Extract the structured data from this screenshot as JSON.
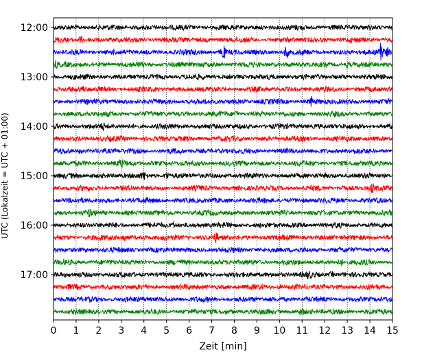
{
  "chart_data": {
    "type": "line",
    "chart_kind": "seismogram-helicorder",
    "title": "",
    "xlabel": "Zeit  [min]",
    "ylabel": "UTC (Lokalzeit = UTC + 01:00)",
    "xlim": [
      0,
      15
    ],
    "x_ticks": [
      0,
      1,
      2,
      3,
      4,
      5,
      6,
      7,
      8,
      9,
      10,
      11,
      12,
      13,
      14,
      15
    ],
    "x_tick_labels": [
      "0",
      "1",
      "2",
      "3",
      "4",
      "5",
      "6",
      "7",
      "8",
      "9",
      "10",
      "11",
      "12",
      "13",
      "14",
      "15"
    ],
    "vertical_grid": true,
    "grid_style": "dotted",
    "trace_interval_min": 15,
    "start_time": "12:00",
    "y_tick_labels": [
      "12:00",
      "13:00",
      "14:00",
      "15:00",
      "16:00",
      "17:00"
    ],
    "series_colors": [
      "#000000",
      "#ff0000",
      "#0000ff",
      "#008000"
    ],
    "traces": [
      {
        "start": "12:00",
        "color": "#000000",
        "events": []
      },
      {
        "start": "12:15",
        "color": "#ff0000",
        "events": [
          {
            "t": 1.2,
            "amp": 0.6
          }
        ]
      },
      {
        "start": "12:30",
        "color": "#0000ff",
        "events": [
          {
            "t": 7.5,
            "amp": 1.6
          },
          {
            "t": 10.3,
            "amp": 1.3
          },
          {
            "t": 14.5,
            "amp": 3.2
          },
          {
            "t": 14.8,
            "amp": 1.0
          }
        ]
      },
      {
        "start": "12:45",
        "color": "#008000",
        "events": [
          {
            "t": 0.1,
            "amp": 0.5
          },
          {
            "t": 13.0,
            "amp": 0.5
          }
        ]
      },
      {
        "start": "13:00",
        "color": "#000000",
        "events": []
      },
      {
        "start": "13:15",
        "color": "#ff0000",
        "events": [
          {
            "t": 1.3,
            "amp": 0.4
          }
        ]
      },
      {
        "start": "13:30",
        "color": "#0000ff",
        "events": [
          {
            "t": 11.4,
            "amp": 0.8
          }
        ]
      },
      {
        "start": "13:45",
        "color": "#008000",
        "events": [
          {
            "t": 1.5,
            "amp": 0.5
          },
          {
            "t": 8.1,
            "amp": 0.6
          }
        ]
      },
      {
        "start": "14:00",
        "color": "#000000",
        "events": [
          {
            "t": 2.2,
            "amp": 0.5
          }
        ]
      },
      {
        "start": "14:15",
        "color": "#ff0000",
        "events": []
      },
      {
        "start": "14:30",
        "color": "#0000ff",
        "events": [
          {
            "t": 1.2,
            "amp": 0.4
          }
        ]
      },
      {
        "start": "14:45",
        "color": "#008000",
        "events": [
          {
            "t": 3.0,
            "amp": 0.6
          }
        ]
      },
      {
        "start": "15:00",
        "color": "#000000",
        "events": [
          {
            "t": 4.0,
            "amp": 0.6
          },
          {
            "t": 5.0,
            "amp": 0.8
          }
        ]
      },
      {
        "start": "15:15",
        "color": "#ff0000",
        "events": [
          {
            "t": 12.8,
            "amp": 0.5
          },
          {
            "t": 14.1,
            "amp": 0.9
          }
        ]
      },
      {
        "start": "15:30",
        "color": "#0000ff",
        "events": []
      },
      {
        "start": "15:45",
        "color": "#008000",
        "events": [
          {
            "t": 1.6,
            "amp": 0.5
          }
        ]
      },
      {
        "start": "16:00",
        "color": "#000000",
        "events": [
          {
            "t": 5.3,
            "amp": 0.5
          }
        ]
      },
      {
        "start": "16:15",
        "color": "#ff0000",
        "events": [
          {
            "t": 3.1,
            "amp": 0.6
          },
          {
            "t": 7.2,
            "amp": 0.8
          }
        ]
      },
      {
        "start": "16:30",
        "color": "#0000ff",
        "events": []
      },
      {
        "start": "16:45",
        "color": "#008000",
        "events": [
          {
            "t": 12.7,
            "amp": 0.5
          }
        ]
      },
      {
        "start": "17:00",
        "color": "#000000",
        "events": [
          {
            "t": 11.3,
            "amp": 0.6
          },
          {
            "t": 12.3,
            "amp": 0.5
          }
        ]
      },
      {
        "start": "17:15",
        "color": "#ff0000",
        "events": [
          {
            "t": 10.0,
            "amp": 0.4
          }
        ]
      },
      {
        "start": "17:30",
        "color": "#0000ff",
        "events": []
      },
      {
        "start": "17:45",
        "color": "#008000",
        "events": [
          {
            "t": 11.0,
            "amp": 0.6
          }
        ]
      }
    ]
  }
}
